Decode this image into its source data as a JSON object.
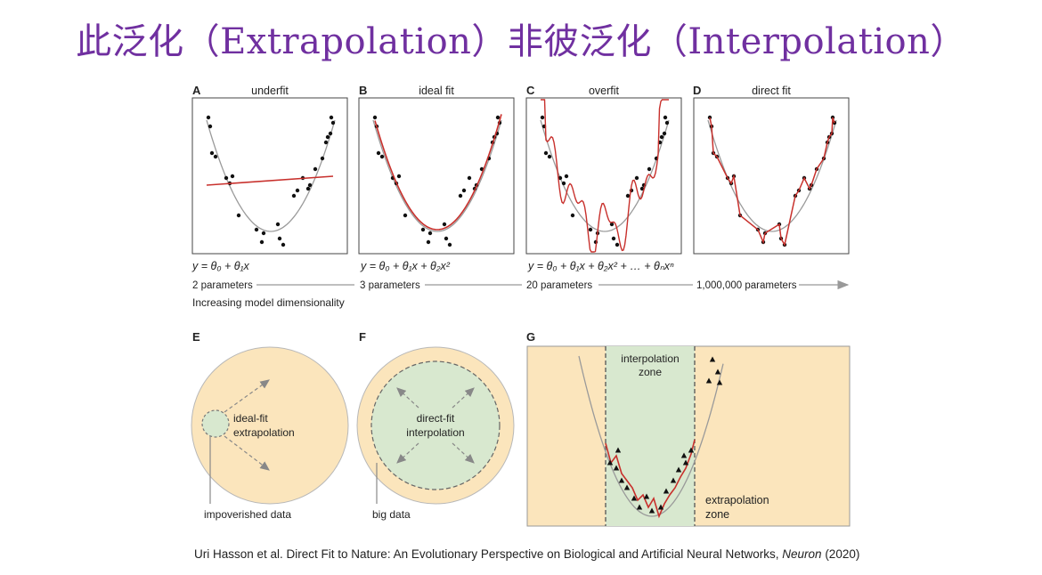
{
  "title": "此泛化（Extrapolation）非彼泛化（Interpolation）",
  "panels": {
    "A": {
      "letter": "A",
      "label": "underfit",
      "equation": "y = θ₀ + θ₁x",
      "params": "2 parameters"
    },
    "B": {
      "letter": "B",
      "label": "ideal fit",
      "equation": "y = θ₀ + θ₁x + θ₂x²",
      "params": "3 parameters"
    },
    "C": {
      "letter": "C",
      "label": "overfit",
      "equation": "y = θ₀ + θ₁x + θ₂x² + … + θₙxⁿ",
      "params": "20 parameters"
    },
    "D": {
      "letter": "D",
      "label": "direct fit",
      "params": "1,000,000 parameters"
    }
  },
  "dimensionality_label": "Increasing model dimensionality",
  "panel_e": {
    "letter": "E",
    "label_line1": "ideal-fit",
    "label_line2": "extrapolation",
    "caption": "impoverished data"
  },
  "panel_f": {
    "letter": "F",
    "label_line1": "direct-fit",
    "label_line2": "interpolation",
    "caption": "big data"
  },
  "panel_g": {
    "letter": "G",
    "interp_line1": "interpolation",
    "interp_line2": "zone",
    "extrap_line1": "extrapolation",
    "extrap_line2": "zone"
  },
  "citation": {
    "text": "Uri Hasson et al. Direct Fit to Nature: An Evolutionary Perspective on Biological and Artificial Neural Networks, ",
    "journal": "Neuron",
    "year": " (2020)"
  },
  "colors": {
    "title": "#7030A0",
    "fit_red": "#C8302C",
    "curve_gray": "#9a9a9a",
    "extrap_fill": "#FBE5BC",
    "interp_fill": "#D8E8CF"
  }
}
